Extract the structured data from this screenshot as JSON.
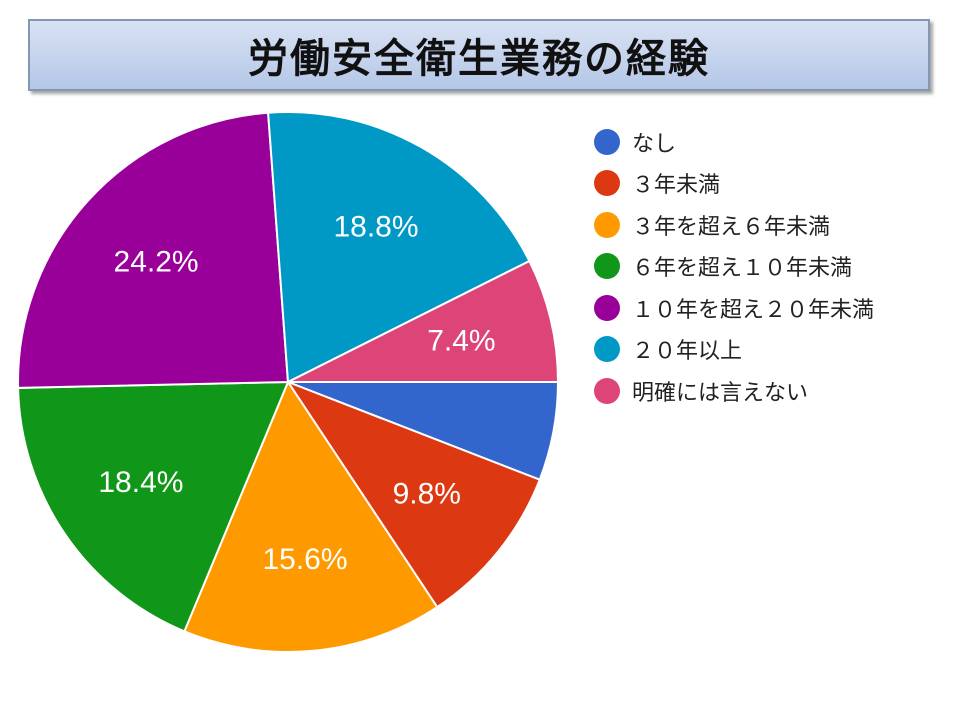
{
  "title": "労働安全衛生業務の経験",
  "chart_data": {
    "type": "pie",
    "title": "労働安全衛生業務の経験",
    "legend_position": "right",
    "start": "3 o'clock, clockwise",
    "slices": [
      {
        "name": "なし",
        "value": 5.9,
        "label": "",
        "color": "#3366cc"
      },
      {
        "name": "３年未満",
        "value": 9.8,
        "label": "9.8%",
        "color": "#dc3912"
      },
      {
        "name": "３年を超え６年未満",
        "value": 15.6,
        "label": "15.6%",
        "color": "#ff9900"
      },
      {
        "name": "６年を超え１０年未満",
        "value": 18.4,
        "label": "18.4%",
        "color": "#109618"
      },
      {
        "name": "１０年を超え２０年未満",
        "value": 24.2,
        "label": "24.2%",
        "color": "#990099"
      },
      {
        "name": "２０年以上",
        "value": 18.8,
        "label": "18.8%",
        "color": "#0099c6"
      },
      {
        "name": "明確には言えない",
        "value": 7.4,
        "label": "7.4%",
        "color": "#dd4477"
      }
    ]
  }
}
